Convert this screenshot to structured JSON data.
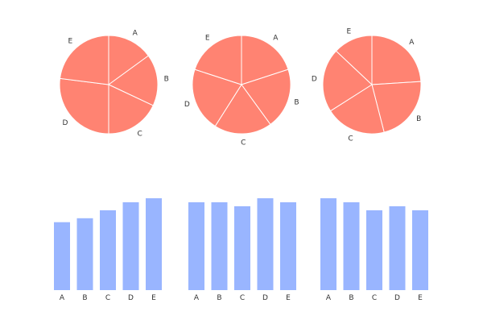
{
  "colors": {
    "pie": "#ff8372",
    "bar": "#99b5ff",
    "slice_border": "#ffffff",
    "label_text": "#333333"
  },
  "chart_data": [
    {
      "type": "pie",
      "categories": [
        "A",
        "B",
        "C",
        "D",
        "E"
      ],
      "values": [
        15,
        17,
        18,
        27,
        23
      ]
    },
    {
      "type": "pie",
      "categories": [
        "A",
        "B",
        "C",
        "D",
        "E"
      ],
      "values": [
        20,
        20,
        19,
        21,
        20
      ]
    },
    {
      "type": "pie",
      "categories": [
        "A",
        "B",
        "C",
        "D",
        "E"
      ],
      "values": [
        24,
        22,
        20,
        21,
        13
      ]
    },
    {
      "type": "bar",
      "categories": [
        "A",
        "B",
        "C",
        "D",
        "E"
      ],
      "values": [
        17,
        18,
        20,
        22,
        23
      ],
      "ylim": [
        0,
        23
      ]
    },
    {
      "type": "bar",
      "categories": [
        "A",
        "B",
        "C",
        "D",
        "E"
      ],
      "values": [
        22,
        22,
        21,
        23,
        22
      ],
      "ylim": [
        0,
        23
      ]
    },
    {
      "type": "bar",
      "categories": [
        "A",
        "B",
        "C",
        "D",
        "E"
      ],
      "values": [
        23,
        22,
        20,
        21,
        20
      ],
      "ylim": [
        0,
        23
      ]
    }
  ]
}
